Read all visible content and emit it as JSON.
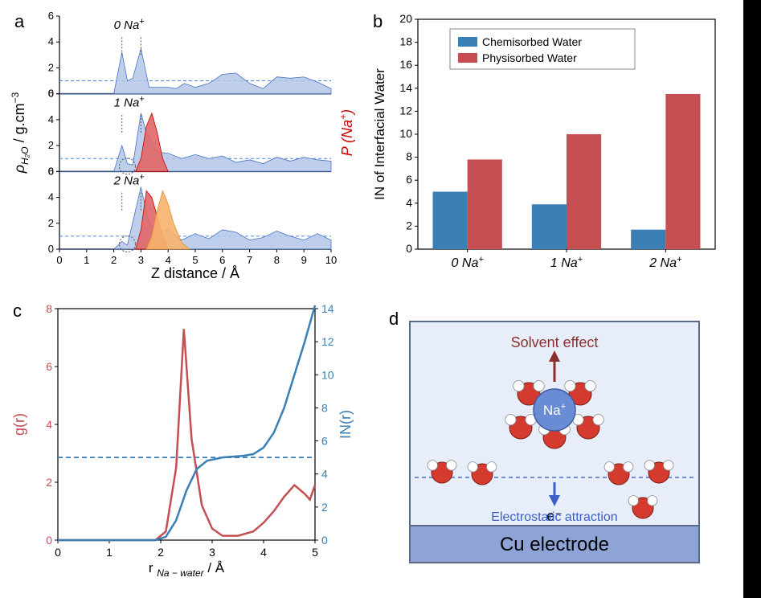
{
  "panel_a": {
    "label": "a",
    "ylabel_left": "ρ_{H₂O} / g.cm⁻³",
    "ylabel_right": "P (Na⁺)",
    "xlabel": "Z distance / Å",
    "xlim": [
      0,
      10
    ],
    "xtick_step": 1,
    "ylim": [
      0,
      6
    ],
    "ytick_step": 2,
    "background_color": "#ffffff",
    "subplot_labels": [
      "0 Na⁺",
      "1 Na⁺",
      "2 Na⁺"
    ],
    "water_fill": "#b4c7e7",
    "water_line": "#4472c4",
    "na1_fill": "#e06666",
    "na1_line": "#cc0000",
    "na2_fill": "#f6b26b",
    "na2_line": "#e69138",
    "ref_line_color": "#4a86e8",
    "series": {
      "0": {
        "water": [
          [
            0,
            0
          ],
          [
            2.0,
            0
          ],
          [
            2.3,
            3.2
          ],
          [
            2.5,
            1.0
          ],
          [
            2.7,
            1.2
          ],
          [
            3.0,
            3.5
          ],
          [
            3.3,
            0.5
          ],
          [
            3.6,
            0.5
          ],
          [
            4.0,
            0.5
          ],
          [
            4.3,
            0.4
          ],
          [
            4.6,
            0.8
          ],
          [
            5.0,
            0.5
          ],
          [
            5.5,
            0.8
          ],
          [
            6.0,
            1.5
          ],
          [
            6.5,
            1.6
          ],
          [
            7.0,
            0.8
          ],
          [
            7.5,
            0.4
          ],
          [
            8.0,
            1.3
          ],
          [
            8.5,
            1.2
          ],
          [
            9.0,
            1.3
          ],
          [
            9.5,
            0.9
          ],
          [
            10,
            0.4
          ]
        ]
      },
      "1": {
        "water": [
          [
            0,
            0
          ],
          [
            2.0,
            0
          ],
          [
            2.3,
            2.0
          ],
          [
            2.5,
            0.6
          ],
          [
            2.7,
            0.5
          ],
          [
            3.0,
            4.5
          ],
          [
            3.2,
            3.0
          ],
          [
            3.6,
            1.5
          ],
          [
            4.0,
            1.4
          ],
          [
            4.5,
            1.0
          ],
          [
            5.0,
            1.3
          ],
          [
            5.5,
            1.0
          ],
          [
            6.0,
            1.2
          ],
          [
            6.5,
            0.7
          ],
          [
            7.0,
            0.9
          ],
          [
            7.5,
            0.6
          ],
          [
            8.0,
            1.1
          ],
          [
            8.5,
            0.8
          ],
          [
            9.0,
            1.1
          ],
          [
            9.5,
            0.9
          ],
          [
            10,
            0.8
          ]
        ],
        "na1": [
          [
            2.8,
            0
          ],
          [
            3.0,
            1.0
          ],
          [
            3.2,
            3.5
          ],
          [
            3.4,
            4.5
          ],
          [
            3.6,
            3.0
          ],
          [
            3.8,
            1.0
          ],
          [
            4.0,
            0
          ]
        ]
      },
      "2": {
        "water": [
          [
            0,
            0
          ],
          [
            2.0,
            0
          ],
          [
            2.3,
            0.6
          ],
          [
            2.5,
            0.3
          ],
          [
            3.0,
            4.8
          ],
          [
            3.3,
            2.0
          ],
          [
            3.6,
            1.2
          ],
          [
            4.0,
            1.5
          ],
          [
            4.5,
            0.7
          ],
          [
            5.0,
            1.2
          ],
          [
            5.5,
            0.8
          ],
          [
            6.0,
            1.5
          ],
          [
            6.5,
            1.3
          ],
          [
            7.0,
            0.7
          ],
          [
            7.5,
            0.9
          ],
          [
            8.0,
            1.4
          ],
          [
            8.5,
            1.0
          ],
          [
            9.0,
            0.7
          ],
          [
            9.5,
            1.2
          ],
          [
            10,
            0.7
          ]
        ],
        "na1": [
          [
            2.8,
            0
          ],
          [
            3.0,
            1.5
          ],
          [
            3.2,
            4.5
          ],
          [
            3.4,
            4.0
          ],
          [
            3.6,
            2.5
          ],
          [
            3.8,
            1.0
          ],
          [
            4.0,
            0
          ]
        ],
        "na2": [
          [
            3.2,
            0
          ],
          [
            3.4,
            1.0
          ],
          [
            3.6,
            3.0
          ],
          [
            3.8,
            4.5
          ],
          [
            4.0,
            3.5
          ],
          [
            4.2,
            2.0
          ],
          [
            4.5,
            0.5
          ],
          [
            4.8,
            0
          ]
        ]
      }
    }
  },
  "panel_b": {
    "label": "b",
    "ylabel": "IN of Interfacial Water",
    "ylim": [
      0,
      20
    ],
    "ytick_step": 2,
    "categories": [
      "0 Na⁺",
      "1 Na⁺",
      "2 Na⁺"
    ],
    "legend": [
      "Chemisorbed Water",
      "Physisorbed Water"
    ],
    "colors": {
      "chemisorbed": "#3a7fb5",
      "physisorbed": "#c44e52"
    },
    "values": {
      "chemisorbed": [
        5.0,
        3.9,
        1.7
      ],
      "physisorbed": [
        7.8,
        10.0,
        13.5
      ]
    },
    "bar_width": 0.35,
    "background_color": "#ffffff"
  },
  "panel_c": {
    "label": "c",
    "xlabel": "r_{Na–water} / Å",
    "ylabel_left": "g(r)",
    "ylabel_left_color": "#c44e52",
    "ylabel_right": "IN(r)",
    "ylabel_right_color": "#3a7fb5",
    "xlim": [
      0,
      5
    ],
    "xtick_step": 1,
    "ylim_left": [
      0,
      8
    ],
    "ytick_left_step": 2,
    "ylim_right": [
      0,
      14
    ],
    "ytick_right_step": 2,
    "ref_value_right": 5,
    "line_width": 2.5,
    "g_r": [
      [
        0,
        0
      ],
      [
        1.9,
        0
      ],
      [
        2.1,
        0.3
      ],
      [
        2.3,
        2.5
      ],
      [
        2.45,
        7.3
      ],
      [
        2.6,
        3.5
      ],
      [
        2.8,
        1.2
      ],
      [
        3.0,
        0.4
      ],
      [
        3.2,
        0.15
      ],
      [
        3.5,
        0.15
      ],
      [
        3.8,
        0.3
      ],
      [
        4.0,
        0.6
      ],
      [
        4.2,
        1.0
      ],
      [
        4.4,
        1.5
      ],
      [
        4.6,
        1.9
      ],
      [
        4.8,
        1.6
      ],
      [
        4.9,
        1.4
      ],
      [
        5.0,
        1.9
      ]
    ],
    "in_r": [
      [
        0,
        0
      ],
      [
        1.9,
        0
      ],
      [
        2.1,
        0.2
      ],
      [
        2.3,
        1.2
      ],
      [
        2.5,
        3.0
      ],
      [
        2.7,
        4.3
      ],
      [
        2.9,
        4.8
      ],
      [
        3.2,
        5.0
      ],
      [
        3.6,
        5.1
      ],
      [
        3.8,
        5.2
      ],
      [
        4.0,
        5.6
      ],
      [
        4.2,
        6.5
      ],
      [
        4.4,
        8.0
      ],
      [
        4.6,
        10.0
      ],
      [
        4.8,
        12.0
      ],
      [
        5.0,
        14.2
      ]
    ]
  },
  "panel_d": {
    "label": "d",
    "bg_color": "#e8eef9",
    "electrode_color": "#8ea3d6",
    "electrode_text": "Cu electrode",
    "e_label": "e⁻",
    "solvent_text": "Solvent effect",
    "solvent_color": "#8b2e2e",
    "electro_text": "Electrostatic attraction",
    "electro_color": "#3b5fc4",
    "na_label": "Na⁺",
    "na_color": "#6a8cd4",
    "oxygen_color": "#d43a2e",
    "hydrogen_color": "#ffffff",
    "border_color": "#5a6a8a",
    "interface_line_color": "#4a6fc4"
  }
}
